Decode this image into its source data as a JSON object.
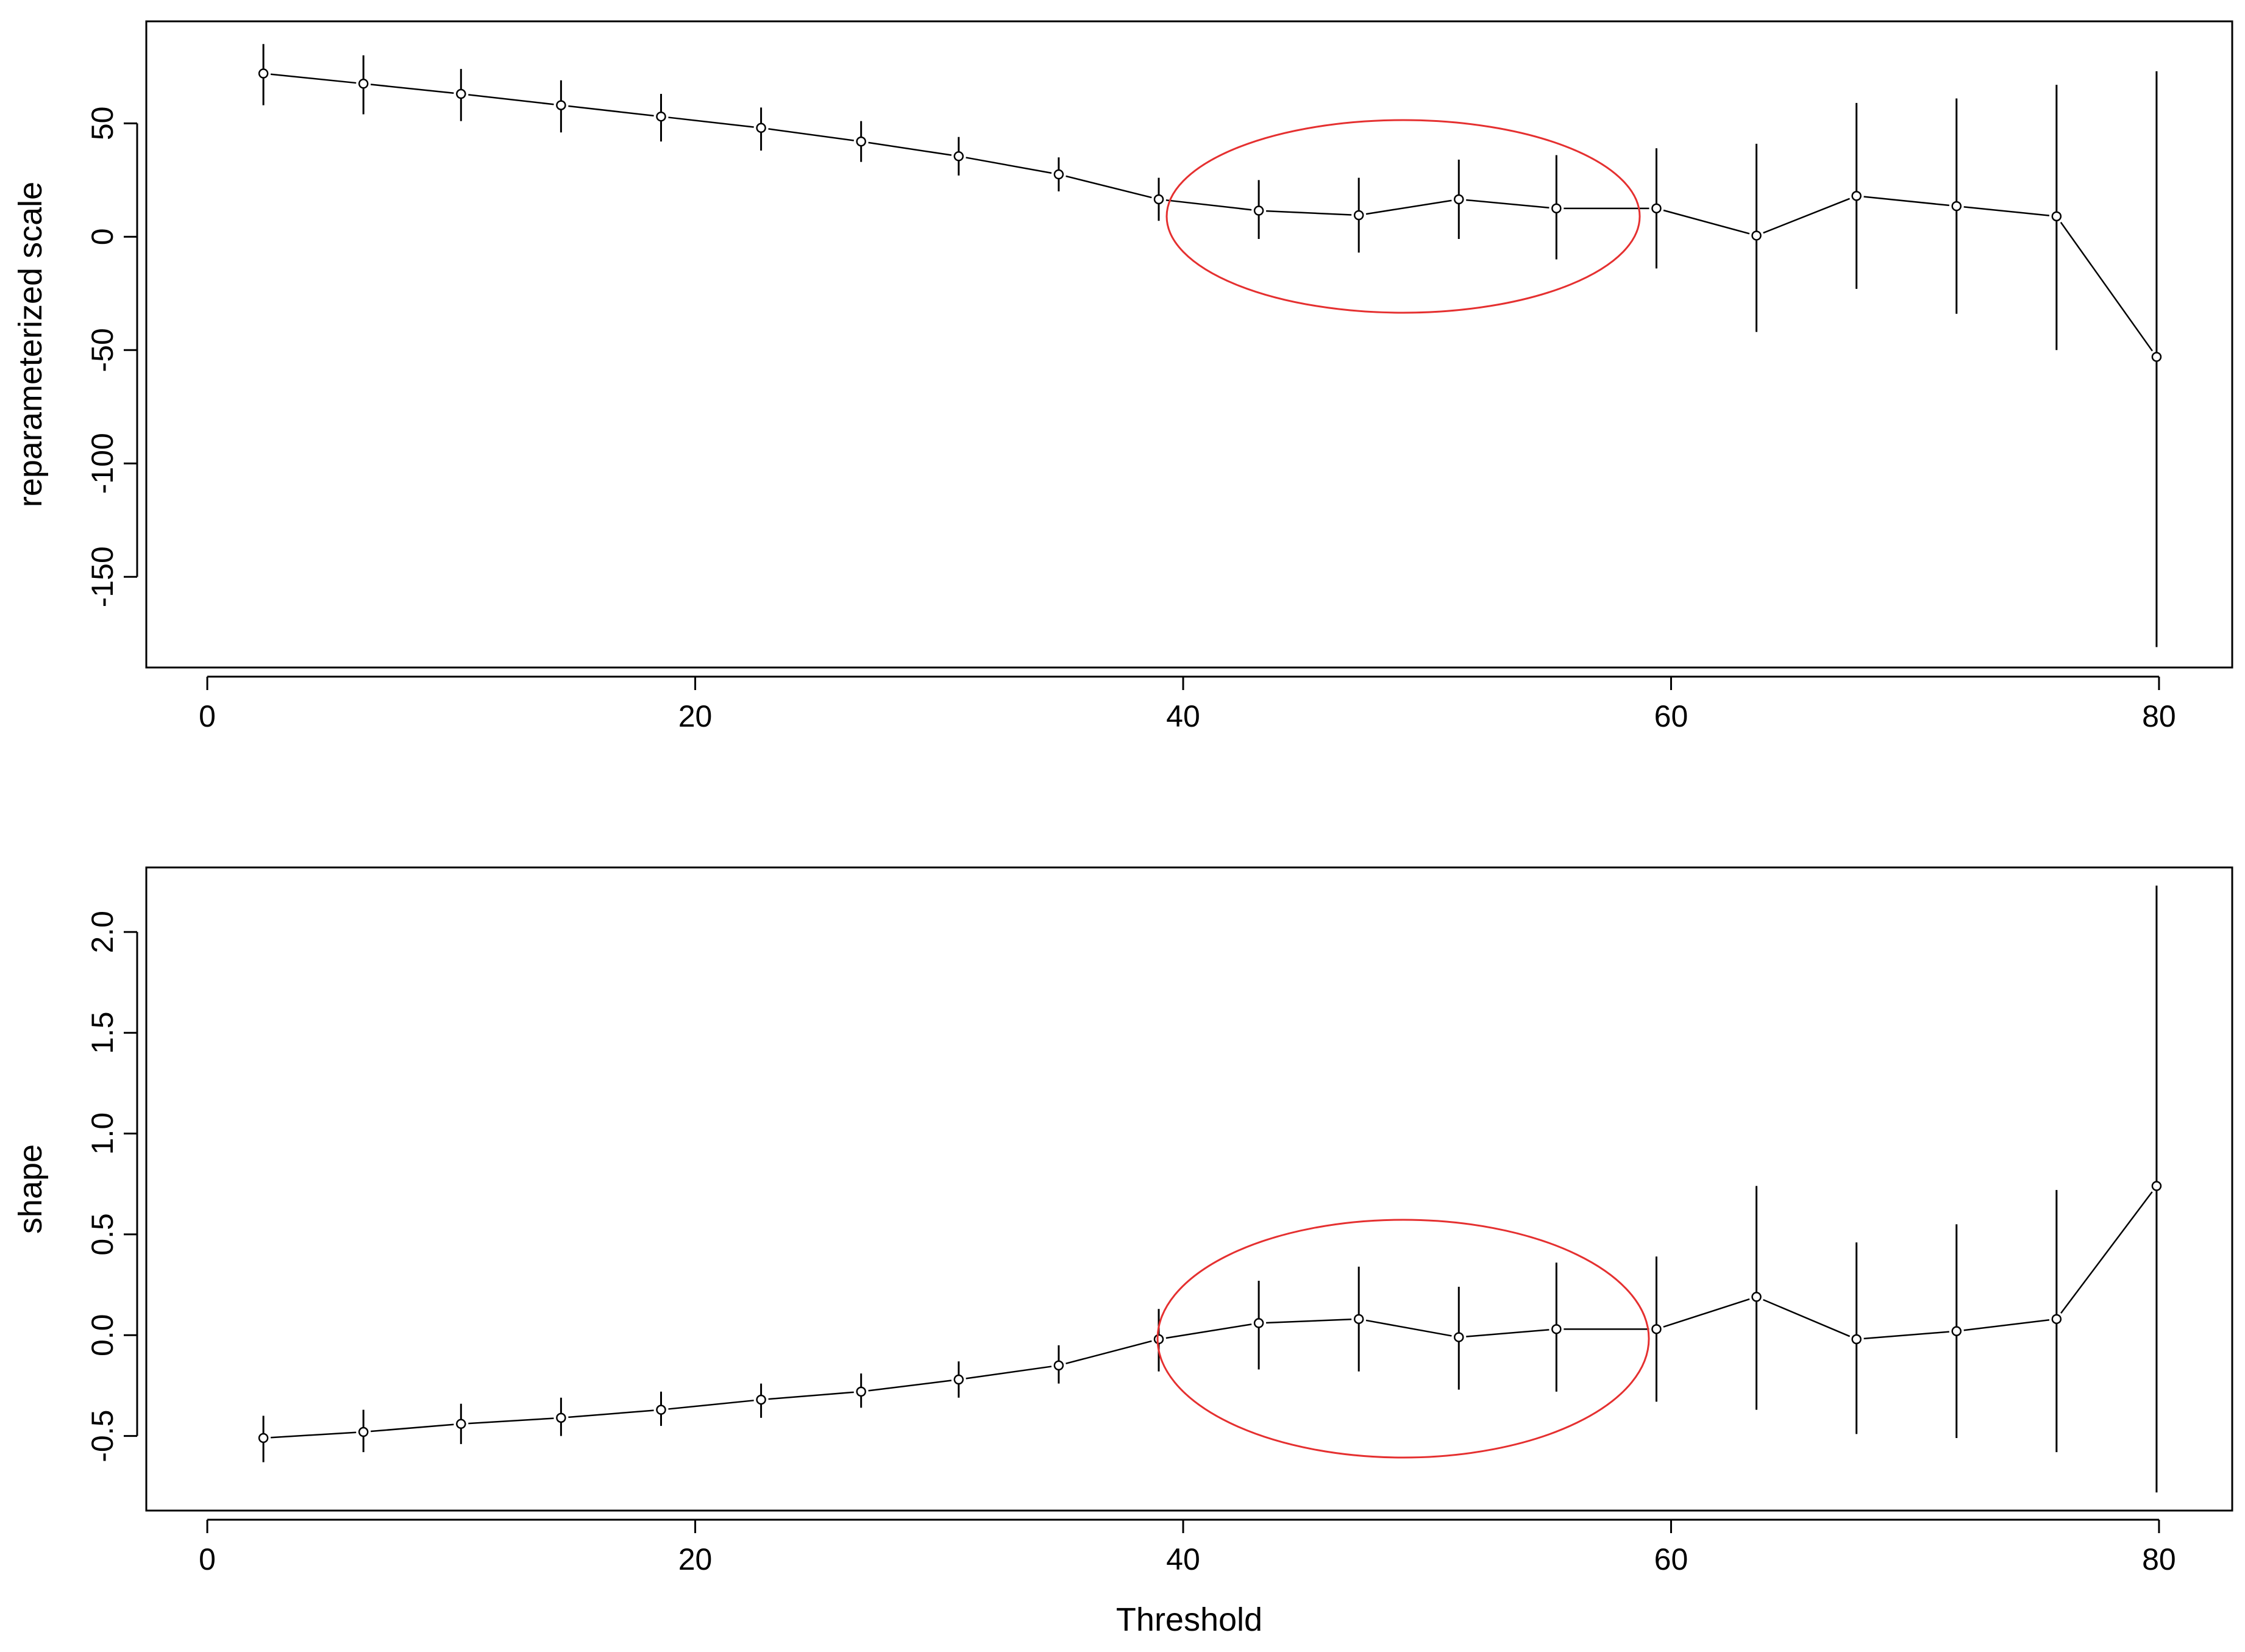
{
  "chart_data": [
    {
      "type": "scatter",
      "title": "",
      "xlabel": "",
      "ylabel": "reparameterized scale",
      "xlim": [
        -2.5,
        83
      ],
      "ylim": [
        -190,
        95
      ],
      "xticks": [
        0,
        20,
        40,
        60,
        80
      ],
      "yticks": [
        -150,
        -100,
        -50,
        0,
        50
      ],
      "x": [
        2.3,
        6.4,
        10.4,
        14.5,
        18.6,
        22.7,
        26.8,
        30.8,
        34.9,
        39.0,
        43.1,
        47.2,
        51.3,
        55.3,
        59.4,
        63.5,
        67.6,
        71.7,
        75.8,
        79.9
      ],
      "y": [
        72,
        67.5,
        63,
        58,
        53,
        48,
        42,
        35.5,
        27.5,
        16.5,
        11.5,
        9.5,
        16.5,
        12.5,
        12.5,
        0.5,
        18,
        13.5,
        9,
        -53
      ],
      "ci_lower": [
        58,
        54,
        51,
        46,
        42,
        38,
        33,
        27,
        20,
        7,
        -1,
        -7,
        -1,
        -10,
        -14,
        -42,
        -23,
        -34,
        -50,
        -181
      ],
      "ci_upper": [
        85,
        80,
        74,
        69,
        63,
        57,
        51,
        44,
        35,
        26,
        25,
        26,
        34,
        36,
        39,
        41,
        59,
        61,
        67,
        73
      ],
      "annotation": "red ellipse highlighting thresholds ~40-60"
    },
    {
      "type": "scatter",
      "title": "",
      "xlabel": "Threshold",
      "ylabel": "shape",
      "xlim": [
        -2.5,
        83
      ],
      "ylim": [
        -0.87,
        2.32
      ],
      "xticks": [
        0,
        20,
        40,
        60,
        80
      ],
      "yticks": [
        -0.5,
        0.0,
        0.5,
        1.0,
        1.5,
        2.0
      ],
      "x": [
        2.3,
        6.4,
        10.4,
        14.5,
        18.6,
        22.7,
        26.8,
        30.8,
        34.9,
        39.0,
        43.1,
        47.2,
        51.3,
        55.3,
        59.4,
        63.5,
        67.6,
        71.7,
        75.8,
        79.9
      ],
      "y": [
        -0.51,
        -0.48,
        -0.44,
        -0.41,
        -0.37,
        -0.32,
        -0.28,
        -0.22,
        -0.15,
        -0.02,
        0.06,
        0.08,
        -0.01,
        0.03,
        0.03,
        0.19,
        -0.02,
        0.02,
        0.08,
        0.74
      ],
      "ci_lower": [
        -0.63,
        -0.58,
        -0.54,
        -0.5,
        -0.45,
        -0.41,
        -0.36,
        -0.31,
        -0.24,
        -0.18,
        -0.17,
        -0.18,
        -0.27,
        -0.28,
        -0.33,
        -0.37,
        -0.49,
        -0.51,
        -0.58,
        -0.78
      ],
      "ci_upper": [
        -0.4,
        -0.37,
        -0.34,
        -0.31,
        -0.28,
        -0.24,
        -0.19,
        -0.13,
        -0.05,
        0.13,
        0.27,
        0.34,
        0.24,
        0.36,
        0.39,
        0.74,
        0.46,
        0.55,
        0.72,
        2.23
      ],
      "annotation": "red ellipse highlighting thresholds ~40-60"
    }
  ],
  "colors": {
    "series": "#000000",
    "annotation": "#e53030",
    "background": "#ffffff"
  }
}
